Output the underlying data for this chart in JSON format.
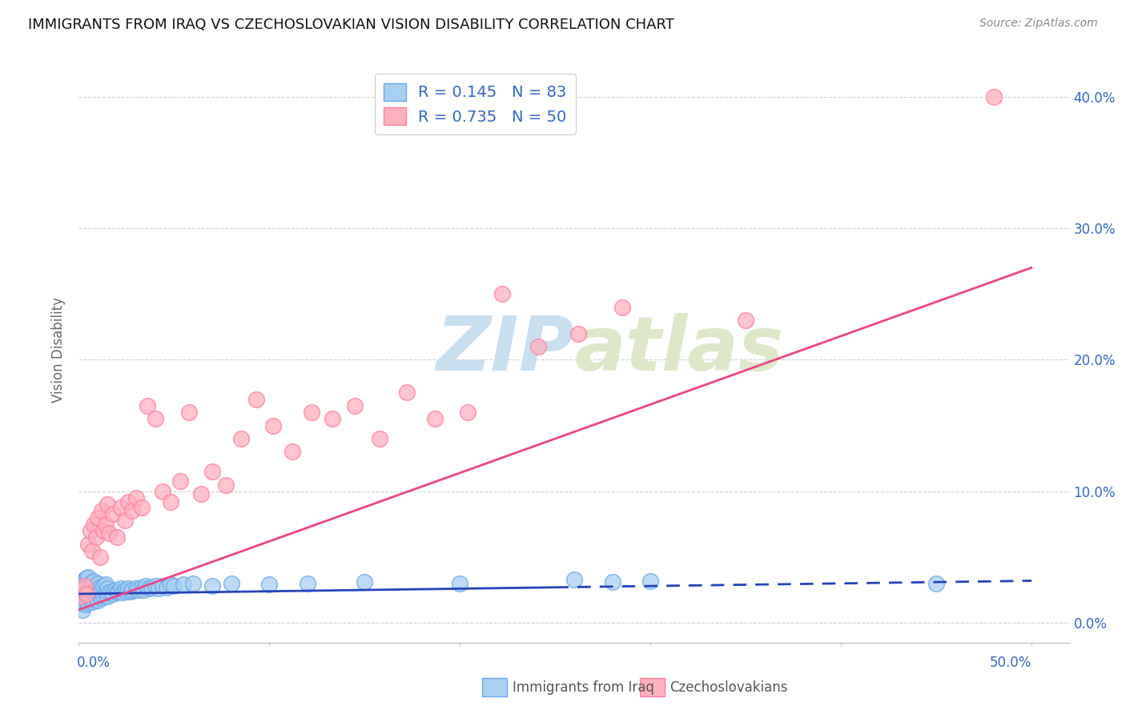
{
  "title": "IMMIGRANTS FROM IRAQ VS CZECHOSLOVAKIAN VISION DISABILITY CORRELATION CHART",
  "source": "Source: ZipAtlas.com",
  "ylabel": "Vision Disability",
  "xlim": [
    0.0,
    0.52
  ],
  "ylim": [
    -0.015,
    0.43
  ],
  "yticks": [
    0.0,
    0.1,
    0.2,
    0.3,
    0.4
  ],
  "ytick_labels": [
    "0.0%",
    "10.0%",
    "20.0%",
    "30.0%",
    "40.0%"
  ],
  "blue_scatter_color": "#a8d0f0",
  "blue_edge_color": "#6aaaee",
  "blue_line_color": "#2244bb",
  "pink_scatter_color": "#ffb0c0",
  "pink_edge_color": "#ff80a0",
  "pink_line_color": "#ee4488",
  "legend_text_color": "#3366cc",
  "watermark_color": "#cde8f5",
  "background_color": "#ffffff",
  "grid_color": "#cccccc",
  "blue_x": [
    0.001,
    0.001,
    0.001,
    0.001,
    0.002,
    0.002,
    0.002,
    0.002,
    0.002,
    0.003,
    0.003,
    0.003,
    0.003,
    0.004,
    0.004,
    0.004,
    0.004,
    0.005,
    0.005,
    0.005,
    0.005,
    0.006,
    0.006,
    0.006,
    0.007,
    0.007,
    0.007,
    0.008,
    0.008,
    0.008,
    0.009,
    0.009,
    0.01,
    0.01,
    0.01,
    0.011,
    0.011,
    0.012,
    0.012,
    0.013,
    0.013,
    0.014,
    0.014,
    0.015,
    0.015,
    0.016,
    0.017,
    0.018,
    0.019,
    0.02,
    0.021,
    0.022,
    0.023,
    0.024,
    0.025,
    0.026,
    0.027,
    0.028,
    0.03,
    0.031,
    0.033,
    0.034,
    0.035,
    0.037,
    0.038,
    0.04,
    0.042,
    0.044,
    0.046,
    0.048,
    0.05,
    0.055,
    0.06,
    0.07,
    0.08,
    0.1,
    0.12,
    0.15,
    0.2,
    0.26,
    0.28,
    0.3,
    0.45
  ],
  "blue_y": [
    0.015,
    0.02,
    0.025,
    0.03,
    0.01,
    0.018,
    0.022,
    0.028,
    0.032,
    0.014,
    0.02,
    0.026,
    0.033,
    0.016,
    0.021,
    0.027,
    0.034,
    0.015,
    0.022,
    0.028,
    0.035,
    0.017,
    0.023,
    0.03,
    0.016,
    0.024,
    0.031,
    0.018,
    0.025,
    0.032,
    0.019,
    0.026,
    0.017,
    0.023,
    0.03,
    0.02,
    0.027,
    0.019,
    0.025,
    0.021,
    0.028,
    0.022,
    0.029,
    0.02,
    0.026,
    0.023,
    0.024,
    0.022,
    0.025,
    0.023,
    0.024,
    0.026,
    0.023,
    0.025,
    0.024,
    0.026,
    0.024,
    0.025,
    0.026,
    0.025,
    0.027,
    0.025,
    0.028,
    0.026,
    0.027,
    0.028,
    0.026,
    0.028,
    0.027,
    0.029,
    0.028,
    0.029,
    0.03,
    0.028,
    0.03,
    0.029,
    0.03,
    0.031,
    0.03,
    0.033,
    0.031,
    0.032,
    0.03
  ],
  "pink_x": [
    0.001,
    0.002,
    0.003,
    0.004,
    0.005,
    0.006,
    0.007,
    0.008,
    0.009,
    0.01,
    0.011,
    0.012,
    0.013,
    0.014,
    0.015,
    0.016,
    0.018,
    0.02,
    0.022,
    0.024,
    0.026,
    0.028,
    0.03,
    0.033,
    0.036,
    0.04,
    0.044,
    0.048,
    0.053,
    0.058,
    0.064,
    0.07,
    0.077,
    0.085,
    0.093,
    0.102,
    0.112,
    0.122,
    0.133,
    0.145,
    0.158,
    0.172,
    0.187,
    0.204,
    0.222,
    0.241,
    0.262,
    0.285,
    0.35,
    0.48
  ],
  "pink_y": [
    0.02,
    0.025,
    0.028,
    0.022,
    0.06,
    0.07,
    0.055,
    0.075,
    0.065,
    0.08,
    0.05,
    0.085,
    0.07,
    0.075,
    0.09,
    0.068,
    0.083,
    0.065,
    0.088,
    0.078,
    0.092,
    0.085,
    0.095,
    0.088,
    0.165,
    0.155,
    0.1,
    0.092,
    0.108,
    0.16,
    0.098,
    0.115,
    0.105,
    0.14,
    0.17,
    0.15,
    0.13,
    0.16,
    0.155,
    0.165,
    0.14,
    0.175,
    0.155,
    0.16,
    0.25,
    0.21,
    0.22,
    0.24,
    0.23,
    0.4
  ],
  "blue_line_x": [
    0.0,
    0.5
  ],
  "blue_line_y": [
    0.022,
    0.032
  ],
  "pink_line_x": [
    0.0,
    0.5
  ],
  "pink_line_y": [
    0.01,
    0.27
  ],
  "bottom_legend_items": [
    {
      "label": "Immigrants from Iraq",
      "color": "#a8d0f0",
      "edge": "#6aaaee"
    },
    {
      "label": "Czechoslovakians",
      "color": "#ffb0c0",
      "edge": "#ff80a0"
    }
  ]
}
